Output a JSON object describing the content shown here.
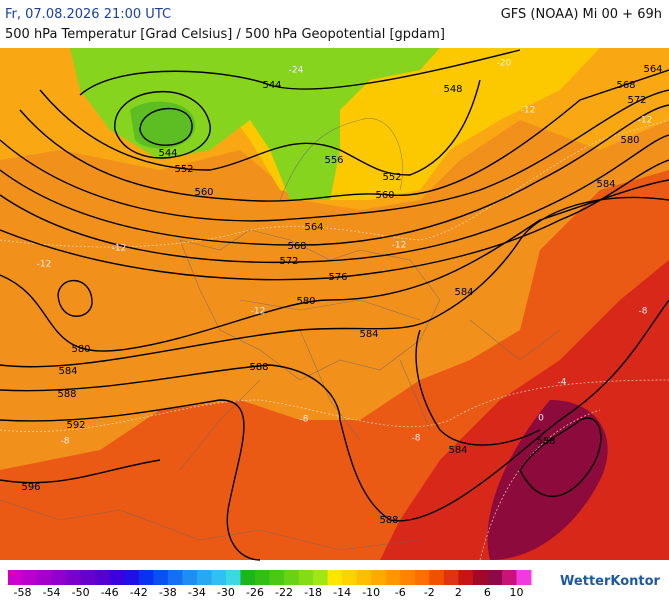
{
  "header": {
    "left": "Fr, 07.08.2026 21:00 UTC",
    "right": "GFS (NOAA) Mi 00 + 69h",
    "subtitle": "500 hPa Temperatur [Grad Celsius] / 500 hPa Geopotential [gpdam]"
  },
  "contour_labels": [
    544,
    548,
    564,
    568,
    572,
    544,
    552,
    556,
    552,
    560,
    560,
    564,
    568,
    572,
    576,
    580,
    584,
    584,
    580,
    584,
    580,
    584,
    588,
    588,
    592,
    596,
    584,
    588,
    588
  ],
  "isotherm_labels": [
    -24,
    -20,
    -12,
    -12,
    -12,
    -12,
    -12,
    -12,
    -8,
    -8,
    -8,
    -4,
    0,
    -8
  ],
  "colorbar": {
    "ticks": [
      -58,
      -54,
      -50,
      -46,
      -42,
      -38,
      -34,
      -30,
      -26,
      -22,
      -18,
      -14,
      -10,
      -6,
      -2,
      2,
      6,
      10
    ],
    "range": [
      -60,
      12
    ],
    "colors": [
      "#cc00cc",
      "#b800cc",
      "#a400cc",
      "#9000cc",
      "#7c00cc",
      "#6800cc",
      "#5400d0",
      "#3c00dc",
      "#2010e6",
      "#0a30f0",
      "#0a50f0",
      "#1470f0",
      "#1e8ef0",
      "#28a8f0",
      "#32c0f0",
      "#3cd8e6",
      "#1eb41e",
      "#32be14",
      "#4cc814",
      "#68d214",
      "#84dc14",
      "#a0e614",
      "#ffe600",
      "#ffd200",
      "#ffbe00",
      "#ffaa00",
      "#ff9600",
      "#ff8200",
      "#ff6e00",
      "#f05000",
      "#e03214",
      "#c81414",
      "#a00a28",
      "#8c0a46",
      "#c8147a",
      "#f03cdc"
    ]
  },
  "logo": "WetterKontor"
}
